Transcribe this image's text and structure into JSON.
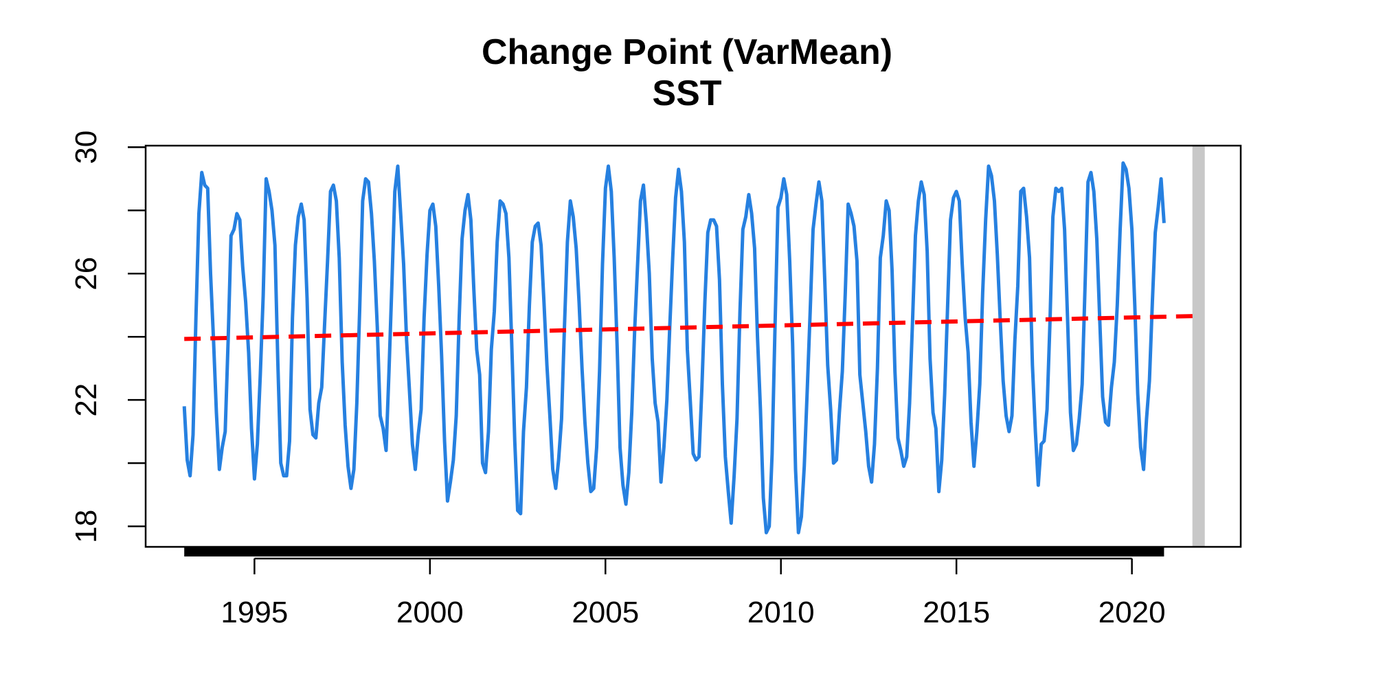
{
  "chart_data": {
    "type": "line",
    "title": "Change Point (VarMean)",
    "subtitle": "SST",
    "xlabel": "",
    "ylabel": "",
    "xlim": [
      1991.9,
      2023.1
    ],
    "ylim": [
      17.35,
      30.05
    ],
    "x_ticks": [
      1995,
      2000,
      2005,
      2010,
      2015,
      2020
    ],
    "x_tick_labels": [
      "1995",
      "2000",
      "2005",
      "2010",
      "2015",
      "2020"
    ],
    "y_ticks": [
      18,
      20,
      22,
      24,
      26,
      28,
      30
    ],
    "y_tick_labels": [
      "18",
      "",
      "22",
      "",
      "26",
      "",
      "30"
    ],
    "grid": false,
    "legend": "none",
    "series": [
      {
        "color": "#2680e0",
        "style": "solid",
        "x_start": 1993.0,
        "x_step": 0.08333,
        "values": [
          21.8,
          20.1,
          19.6,
          20.9,
          24.6,
          27.9,
          29.2,
          28.8,
          28.7,
          26.0,
          23.9,
          21.6,
          19.8,
          20.5,
          21.0,
          23.9,
          27.2,
          27.4,
          27.9,
          27.7,
          26.2,
          25.1,
          23.5,
          21.1,
          19.5,
          20.6,
          22.8,
          25.3,
          29.0,
          28.6,
          28.0,
          26.9,
          23.2,
          20.0,
          19.6,
          19.6,
          20.7,
          24.6,
          26.9,
          27.8,
          28.2,
          27.7,
          25.2,
          21.7,
          20.9,
          20.8,
          21.9,
          22.4,
          24.4,
          26.4,
          28.6,
          28.8,
          28.3,
          26.5,
          23.2,
          21.2,
          19.9,
          19.2,
          19.8,
          21.9,
          24.9,
          28.3,
          29.0,
          28.9,
          27.9,
          26.4,
          24.3,
          21.5,
          21.1,
          20.4,
          22.9,
          25.7,
          28.6,
          29.4,
          27.9,
          26.3,
          23.9,
          22.3,
          20.6,
          19.8,
          20.9,
          21.7,
          24.6,
          26.6,
          28.0,
          28.2,
          27.5,
          25.6,
          23.4,
          20.7,
          18.8,
          19.4,
          20.1,
          21.5,
          24.6,
          27.1,
          28.0,
          28.5,
          27.7,
          25.5,
          23.6,
          22.8,
          20.0,
          19.7,
          21.0,
          23.6,
          24.8,
          27.0,
          28.3,
          28.2,
          27.9,
          26.5,
          23.7,
          20.7,
          18.5,
          18.4,
          21.0,
          22.4,
          25.0,
          27.0,
          27.5,
          27.6,
          26.9,
          25.1,
          23.1,
          21.5,
          19.8,
          19.2,
          20.1,
          21.4,
          24.3,
          27.0,
          28.3,
          27.8,
          26.8,
          25.1,
          23.0,
          21.3,
          20.0,
          19.1,
          19.2,
          20.5,
          22.9,
          26.3,
          28.7,
          29.4,
          28.6,
          26.5,
          23.7,
          20.5,
          19.3,
          18.7,
          19.7,
          21.6,
          24.2,
          26.3,
          28.3,
          28.8,
          27.6,
          26.0,
          23.3,
          21.9,
          21.3,
          19.4,
          20.5,
          22.0,
          24.3,
          26.5,
          28.4,
          29.3,
          28.6,
          27.0,
          23.6,
          22.0,
          20.3,
          20.1,
          20.2,
          22.4,
          25.1,
          27.3,
          27.7,
          27.7,
          27.5,
          25.8,
          22.5,
          20.2,
          19.1,
          18.1,
          19.6,
          21.4,
          24.8,
          27.4,
          27.8,
          28.5,
          27.9,
          26.8,
          24.0,
          21.7,
          18.9,
          17.8,
          18.0,
          20.3,
          24.4,
          28.1,
          28.4,
          29.0,
          28.5,
          26.4,
          23.8,
          19.8,
          17.8,
          18.3,
          19.9,
          22.3,
          24.8,
          27.4,
          28.2,
          28.9,
          28.3,
          25.8,
          23.1,
          21.7,
          20.0,
          20.1,
          21.6,
          22.9,
          25.4,
          28.2,
          27.9,
          27.5,
          26.4,
          22.8,
          21.9,
          21.0,
          19.9,
          19.4,
          20.6,
          23.0,
          26.5,
          27.2,
          28.3,
          28.0,
          26.1,
          22.9,
          20.8,
          20.4,
          19.9,
          20.2,
          21.9,
          24.5,
          27.2,
          28.3,
          28.9,
          28.5,
          26.7,
          23.3,
          21.6,
          21.1,
          19.1,
          20.1,
          22.2,
          25.0,
          27.7,
          28.4,
          28.6,
          28.3,
          26.3,
          24.6,
          23.5,
          21.3,
          19.9,
          21.0,
          22.5,
          25.4,
          27.7,
          29.4,
          29.1,
          28.3,
          26.6,
          24.5,
          22.6,
          21.5,
          21.0,
          21.5,
          23.9,
          25.6,
          28.6,
          28.7,
          27.8,
          26.5,
          23.1,
          21.0,
          19.3,
          20.6,
          20.7,
          21.7,
          24.5,
          27.8,
          28.7,
          28.6,
          28.7,
          27.4,
          24.6,
          21.6,
          20.4,
          20.6,
          21.4,
          22.5,
          25.6,
          28.9,
          29.2,
          28.6,
          27.1,
          24.6,
          22.1,
          21.3,
          21.2,
          22.4,
          23.2,
          25.0,
          27.4,
          29.5,
          29.3,
          28.7,
          27.4,
          25.0,
          22.2,
          20.5,
          19.8,
          21.4,
          22.6,
          25.1,
          27.3,
          28.1,
          29.0,
          27.6
        ]
      },
      {
        "color": "#ff0000",
        "style": "dashed",
        "x": [
          1993.0,
          2021.9
        ],
        "values": [
          23.93,
          24.66
        ]
      }
    ],
    "change_point": {
      "x": 2021.9,
      "color": "#c8c8c8"
    }
  }
}
